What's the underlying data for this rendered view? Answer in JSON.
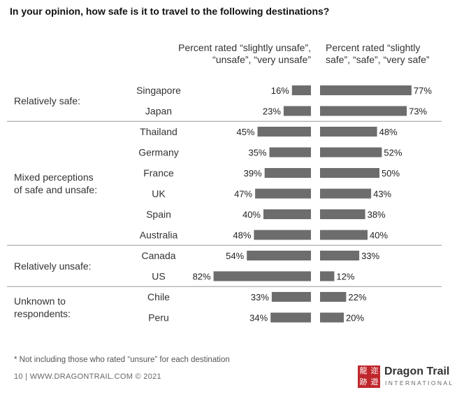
{
  "title": "In your opinion, how safe is it to travel to the following destinations?",
  "header": {
    "left_line1": "Percent rated “slightly unsafe”,",
    "left_line2": "“unsafe”, “very unsafe”",
    "right_line1": "Percent rated “slightly",
    "right_line2": "safe”, “safe”, “very safe”"
  },
  "colors": {
    "bar": "#6d6d6d",
    "divider": "#999999"
  },
  "chart_data": {
    "type": "bar",
    "orientation": "horizontal-diverging",
    "unit": "%",
    "groups": [
      {
        "label_lines": [
          "Relatively safe:"
        ],
        "countries": [
          "Singapore",
          "Japan"
        ]
      },
      {
        "label_lines": [
          "Mixed perceptions",
          "of safe and unsafe:"
        ],
        "countries": [
          "Thailand",
          "Germany",
          "France",
          "UK",
          "Spain",
          "Australia"
        ]
      },
      {
        "label_lines": [
          "Relatively unsafe:"
        ],
        "countries": [
          "Canada",
          "US"
        ]
      },
      {
        "label_lines": [
          "Unknown to",
          "respondents:"
        ],
        "countries": [
          "Chile",
          "Peru"
        ]
      }
    ],
    "categories": [
      "Singapore",
      "Japan",
      "Thailand",
      "Germany",
      "France",
      "UK",
      "Spain",
      "Australia",
      "Canada",
      "US",
      "Chile",
      "Peru"
    ],
    "series": [
      {
        "name": "Percent rated “slightly unsafe”, “unsafe”, “very unsafe”",
        "values": [
          16,
          23,
          45,
          35,
          39,
          47,
          40,
          48,
          54,
          82,
          33,
          34
        ]
      },
      {
        "name": "Percent rated “slightly safe”, “safe”, “very safe”",
        "values": [
          77,
          73,
          48,
          52,
          50,
          43,
          38,
          40,
          33,
          12,
          22,
          20
        ]
      }
    ]
  },
  "footnote": "* Not including those who rated “unsure” for each destination",
  "footer": "10  |  WWW.DRAGONTRAIL.COM ©  2021",
  "logo": {
    "chars": [
      "龍",
      "迩",
      "跡",
      "遊"
    ],
    "name": "Dragon Trail",
    "sub": "INTERNATIONAL"
  }
}
